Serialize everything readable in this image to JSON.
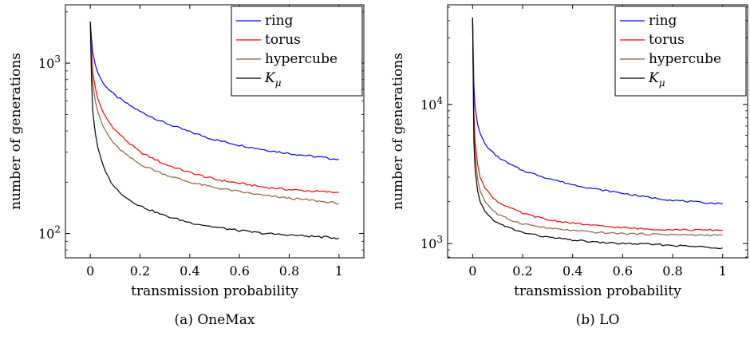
{
  "chart_data": [
    {
      "type": "line",
      "caption": "(a) OneMax",
      "xlabel": "transmission probability",
      "ylabel": "number of generations",
      "yscale": "log",
      "xlim": [
        -0.1,
        1.1
      ],
      "ylim": [
        72,
        2200
      ],
      "x_ticks": [
        "0",
        "0.2",
        "0.4",
        "0.6",
        "0.8",
        "1"
      ],
      "y_ticks": [
        {
          "value": 100,
          "label": "10",
          "exp": "2"
        },
        {
          "value": 1000,
          "label": "10",
          "exp": "3"
        }
      ],
      "legend_position": "top-right",
      "series": [
        {
          "name": "ring",
          "color": "#0000ff",
          "x": [
            0,
            0.005,
            0.01,
            0.02,
            0.03,
            0.05,
            0.075,
            0.1,
            0.15,
            0.2,
            0.3,
            0.4,
            0.5,
            0.6,
            0.7,
            0.8,
            0.9,
            1.0
          ],
          "y": [
            1750,
            1400,
            1150,
            980,
            880,
            770,
            700,
            645,
            575,
            520,
            445,
            395,
            355,
            330,
            310,
            295,
            283,
            272
          ]
        },
        {
          "name": "torus",
          "color": "#ff0000",
          "x": [
            0,
            0.005,
            0.01,
            0.02,
            0.03,
            0.05,
            0.075,
            0.1,
            0.15,
            0.2,
            0.3,
            0.4,
            0.5,
            0.6,
            0.7,
            0.8,
            0.9,
            1.0
          ],
          "y": [
            1750,
            1200,
            880,
            720,
            620,
            520,
            450,
            405,
            345,
            300,
            255,
            228,
            208,
            197,
            187,
            181,
            177,
            174
          ]
        },
        {
          "name": "hypercube",
          "color": "#8c6239",
          "x": [
            0,
            0.005,
            0.01,
            0.02,
            0.03,
            0.05,
            0.075,
            0.1,
            0.15,
            0.2,
            0.3,
            0.4,
            0.5,
            0.6,
            0.7,
            0.8,
            0.9,
            1.0
          ],
          "y": [
            1750,
            1050,
            760,
            600,
            520,
            430,
            370,
            330,
            285,
            255,
            222,
            200,
            186,
            176,
            167,
            161,
            156,
            150
          ]
        },
        {
          "name": "K_μ",
          "color": "#000000",
          "x": [
            0,
            0.005,
            0.01,
            0.02,
            0.03,
            0.05,
            0.075,
            0.1,
            0.15,
            0.2,
            0.3,
            0.4,
            0.5,
            0.6,
            0.7,
            0.8,
            0.9,
            1.0
          ],
          "y": [
            1750,
            800,
            520,
            390,
            320,
            255,
            210,
            185,
            160,
            145,
            127,
            116,
            109,
            104,
            100,
            98,
            96,
            94
          ]
        }
      ]
    },
    {
      "type": "line",
      "caption": "(b) LO",
      "xlabel": "transmission probability",
      "ylabel": "number of generations",
      "yscale": "log",
      "xlim": [
        -0.1,
        1.1
      ],
      "ylim": [
        790,
        52000
      ],
      "x_ticks": [
        "0",
        "0.2",
        "0.4",
        "0.6",
        "0.8",
        "1"
      ],
      "y_ticks": [
        {
          "value": 1000,
          "label": "10",
          "exp": "3"
        },
        {
          "value": 10000,
          "label": "10",
          "exp": "4"
        }
      ],
      "legend_position": "top-right",
      "series": [
        {
          "name": "ring",
          "color": "#0000ff",
          "x": [
            0,
            0.005,
            0.01,
            0.02,
            0.03,
            0.05,
            0.075,
            0.1,
            0.15,
            0.2,
            0.3,
            0.4,
            0.5,
            0.6,
            0.7,
            0.8,
            0.9,
            1.0
          ],
          "y": [
            42000,
            14000,
            9500,
            7200,
            6200,
            5200,
            4600,
            4200,
            3700,
            3350,
            2950,
            2650,
            2450,
            2300,
            2150,
            2050,
            1980,
            1930
          ]
        },
        {
          "name": "torus",
          "color": "#ff0000",
          "x": [
            0,
            0.005,
            0.01,
            0.02,
            0.03,
            0.05,
            0.075,
            0.1,
            0.15,
            0.2,
            0.3,
            0.4,
            0.5,
            0.6,
            0.7,
            0.8,
            0.9,
            1.0
          ],
          "y": [
            42000,
            9000,
            5500,
            3700,
            3000,
            2500,
            2200,
            2000,
            1800,
            1650,
            1480,
            1400,
            1340,
            1300,
            1270,
            1260,
            1250,
            1250
          ]
        },
        {
          "name": "hypercube",
          "color": "#8c6239",
          "x": [
            0,
            0.005,
            0.01,
            0.02,
            0.03,
            0.05,
            0.075,
            0.1,
            0.15,
            0.2,
            0.3,
            0.4,
            0.5,
            0.6,
            0.7,
            0.8,
            0.9,
            1.0
          ],
          "y": [
            42000,
            7000,
            4300,
            2900,
            2400,
            2000,
            1780,
            1620,
            1480,
            1390,
            1290,
            1240,
            1200,
            1180,
            1170,
            1160,
            1150,
            1150
          ]
        },
        {
          "name": "K_μ",
          "color": "#000000",
          "x": [
            0,
            0.005,
            0.01,
            0.02,
            0.03,
            0.05,
            0.075,
            0.1,
            0.15,
            0.2,
            0.3,
            0.4,
            0.5,
            0.6,
            0.7,
            0.8,
            0.9,
            1.0
          ],
          "y": [
            42000,
            5500,
            3400,
            2400,
            2000,
            1700,
            1520,
            1400,
            1290,
            1200,
            1110,
            1060,
            1020,
            1000,
            990,
            970,
            950,
            930
          ]
        }
      ]
    }
  ]
}
